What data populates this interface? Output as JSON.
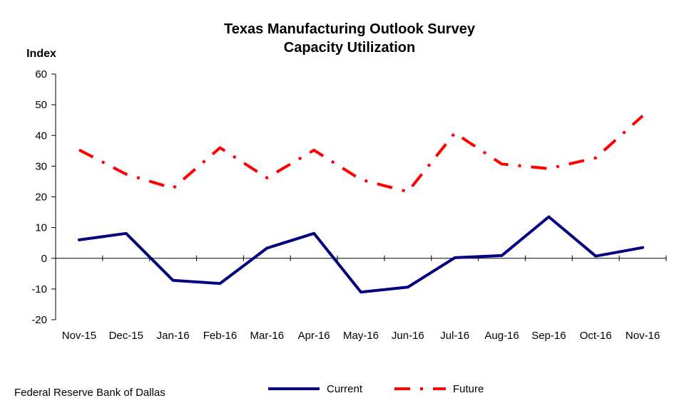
{
  "chart_data": {
    "type": "line",
    "title": "Texas Manufacturing Outlook Survey",
    "subtitle": "Capacity Utilization",
    "ylabel": "Index",
    "xlabel": "",
    "ylim": [
      -20,
      60
    ],
    "yticks": [
      -20,
      -10,
      0,
      10,
      20,
      30,
      40,
      50,
      60
    ],
    "categories": [
      "Nov-15",
      "Dec-15",
      "Jan-16",
      "Feb-16",
      "Mar-16",
      "Apr-16",
      "May-16",
      "Jun-16",
      "Jul-16",
      "Aug-16",
      "Sep-16",
      "Oct-16",
      "Nov-16"
    ],
    "series": [
      {
        "name": "Current",
        "color": "#000080",
        "style": "solid",
        "values": [
          6.0,
          8.1,
          -7.2,
          -8.2,
          3.3,
          8.1,
          -11.0,
          -9.4,
          0.2,
          0.9,
          13.5,
          0.7,
          3.5
        ]
      },
      {
        "name": "Future",
        "color": "#ff0000",
        "style": "dash-dot",
        "values": [
          35.3,
          27.4,
          22.8,
          36.0,
          26.2,
          35.2,
          25.6,
          21.7,
          40.8,
          30.7,
          29.2,
          32.7,
          46.4
        ]
      }
    ],
    "grid": false,
    "legend_position": "bottom-center"
  },
  "footer": {
    "source": "Federal Reserve Bank of Dallas"
  }
}
